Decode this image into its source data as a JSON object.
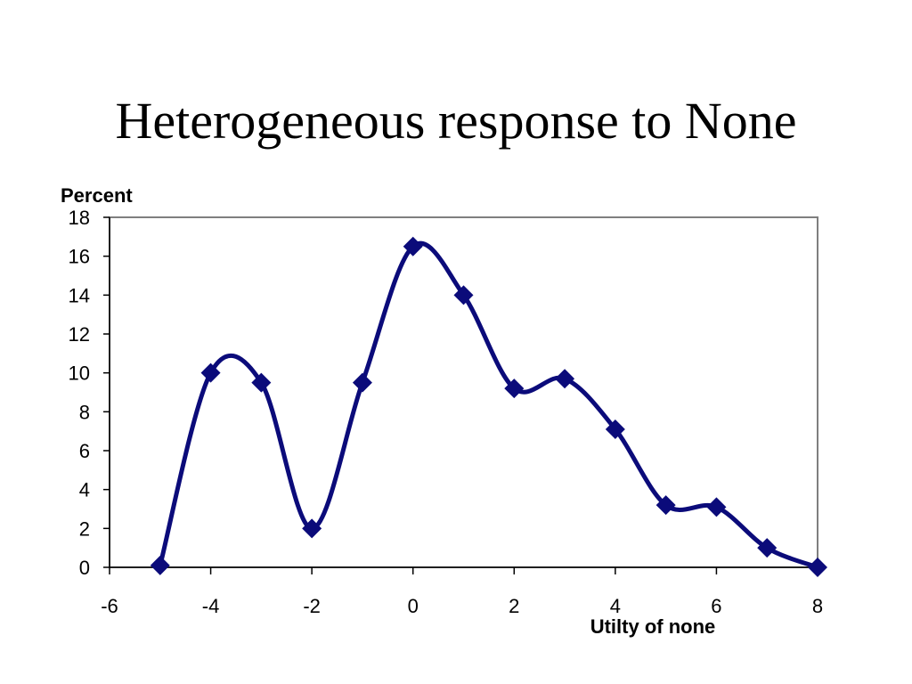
{
  "title": "Heterogeneous response to None",
  "chart_data": {
    "type": "line",
    "title": "Heterogeneous response to None",
    "xlabel": "Utilty of none",
    "ylabel": "Percent",
    "xlim": [
      -6,
      8
    ],
    "ylim": [
      0,
      18
    ],
    "xticks": [
      -6,
      -4,
      -2,
      0,
      2,
      4,
      6,
      8
    ],
    "yticks": [
      0,
      2,
      4,
      6,
      8,
      10,
      12,
      14,
      16,
      18
    ],
    "grid": false,
    "smooth": true,
    "series": [
      {
        "x": [
          -5,
          -4,
          -3,
          -2,
          -1,
          0,
          1,
          2,
          3,
          4,
          5,
          6,
          7,
          8
        ],
        "y": [
          0.1,
          10.0,
          9.5,
          2.0,
          9.5,
          16.5,
          14.0,
          9.2,
          9.7,
          7.1,
          3.2,
          3.1,
          1.0,
          0.0
        ]
      }
    ],
    "colors": {
      "line": "#0b0b7a",
      "frame": "#7f7f7f",
      "axis": "#000000"
    }
  }
}
